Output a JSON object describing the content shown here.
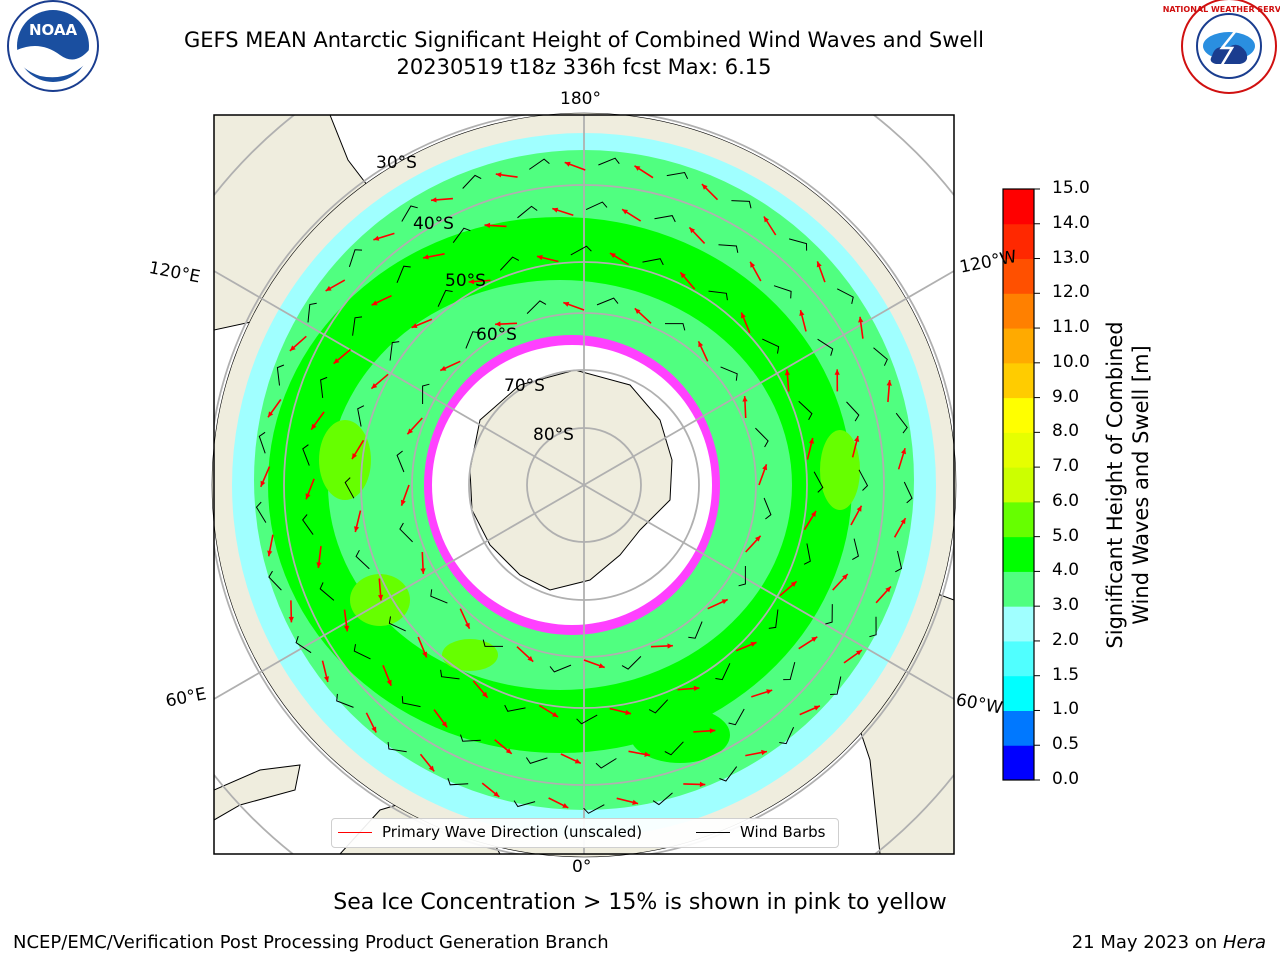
{
  "header": {
    "title_line1": "GEFS MEAN Antarctic Significant Height of Combined Wind Waves and Swell",
    "title_line2": "20230519 t18z 336h fcst   Max: 6.15"
  },
  "logos": {
    "left": "NOAA",
    "right": "NATIONAL WEATHER SERVICE"
  },
  "map": {
    "projection": "south-polar-stereographic",
    "longitude_labels": {
      "top": "180°",
      "bottom": "0°",
      "upper_left": "120°E",
      "upper_right": "120°W",
      "lower_left": "60°E",
      "lower_right": "60°W"
    },
    "latitude_labels": [
      "30°S",
      "40°S",
      "50°S",
      "60°S",
      "70°S",
      "80°S"
    ],
    "field": "Significant Height of Combined Wind Waves and Swell",
    "max_value": 6.15
  },
  "legend": {
    "primary_wave_label": "Primary Wave Direction (unscaled)",
    "primary_wave_color": "#ff0000",
    "wind_barbs_label": "Wind Barbs",
    "wind_barbs_color": "#000000"
  },
  "colorbar": {
    "title_line1": "Significant Height of Combined",
    "title_line2": "Wind Waves and Swell [m]",
    "ticks": [
      "0.0",
      "0.5",
      "1.0",
      "1.5",
      "2.0",
      "3.0",
      "4.0",
      "5.0",
      "6.0",
      "7.0",
      "8.0",
      "9.0",
      "10.0",
      "11.0",
      "12.0",
      "13.0",
      "14.0",
      "15.0"
    ],
    "colors": [
      "#0000ff",
      "#0078ff",
      "#00ffff",
      "#50ffff",
      "#a0ffff",
      "#50ff80",
      "#00ff00",
      "#66ff00",
      "#ccff00",
      "#e6ff00",
      "#ffff00",
      "#ffcc00",
      "#ffaa00",
      "#ff8000",
      "#ff5000",
      "#ff2800",
      "#ff0000"
    ]
  },
  "note": "Sea Ice Concentration > 15% is shown in pink to yellow",
  "footer": {
    "left": "NCEP/EMC/Verification Post Processing Product Generation Branch",
    "right_prefix": "21 May 2023 on ",
    "right_machine": "Hera"
  }
}
